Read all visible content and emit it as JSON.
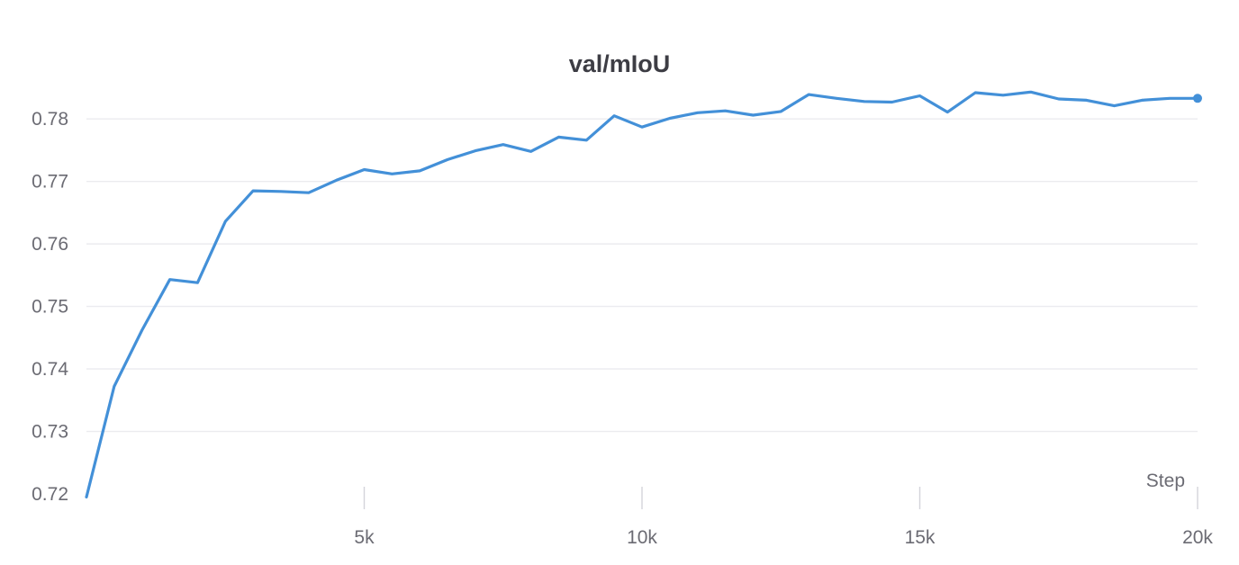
{
  "chart_data": {
    "type": "line",
    "title": "val/mIoU",
    "xlabel": "Step",
    "ylabel": "",
    "xlim": [
      0,
      20000
    ],
    "ylim": [
      0.72,
      0.7855
    ],
    "x_ticks": [
      {
        "value": 5000,
        "label": "5k"
      },
      {
        "value": 10000,
        "label": "10k"
      },
      {
        "value": 15000,
        "label": "15k"
      },
      {
        "value": 20000,
        "label": "20k"
      }
    ],
    "y_ticks": [
      {
        "value": 0.72,
        "label": "0.72"
      },
      {
        "value": 0.73,
        "label": "0.73"
      },
      {
        "value": 0.74,
        "label": "0.74"
      },
      {
        "value": 0.75,
        "label": "0.75"
      },
      {
        "value": 0.76,
        "label": "0.76"
      },
      {
        "value": 0.77,
        "label": "0.77"
      },
      {
        "value": 0.78,
        "label": "0.78"
      }
    ],
    "grid": true,
    "legend": "none",
    "color": "#4390d8",
    "series": [
      {
        "x": [
          0,
          500,
          1000,
          1500,
          2000,
          2500,
          3000,
          3500,
          4000,
          4500,
          5000,
          5500,
          6000,
          6500,
          7000,
          7500,
          8000,
          8500,
          9000,
          9500,
          10000,
          10500,
          11000,
          11500,
          12000,
          12500,
          13000,
          13500,
          14000,
          14500,
          15000,
          15500,
          16000,
          16500,
          17000,
          17500,
          18000,
          18500,
          19000,
          19500,
          20000
        ],
        "values": [
          0.7195,
          0.7372,
          0.7462,
          0.7543,
          0.7538,
          0.7636,
          0.7685,
          0.7684,
          0.7682,
          0.7702,
          0.7719,
          0.7712,
          0.7717,
          0.7735,
          0.7749,
          0.7759,
          0.7748,
          0.7771,
          0.7766,
          0.7805,
          0.7787,
          0.7801,
          0.781,
          0.7813,
          0.7806,
          0.7812,
          0.7839,
          0.7833,
          0.7828,
          0.7827,
          0.7837,
          0.7811,
          0.7842,
          0.7838,
          0.7843,
          0.7832,
          0.783,
          0.7821,
          0.783,
          0.7833,
          0.7833
        ]
      }
    ]
  }
}
